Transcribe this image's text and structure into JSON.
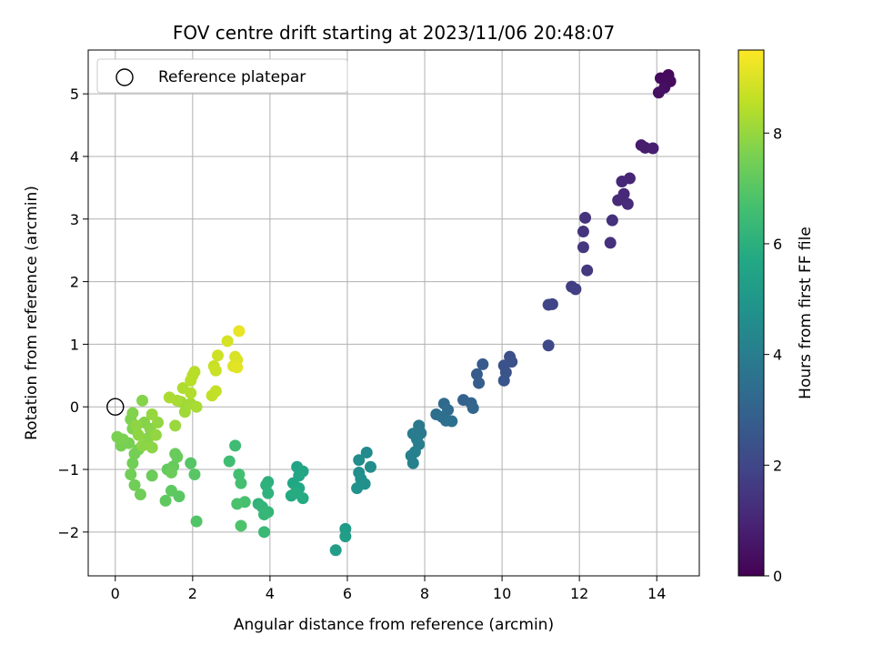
{
  "chart_data": {
    "type": "scatter",
    "title": "FOV centre drift starting at 2023/11/06 20:48:07",
    "xlabel": "Angular distance from reference (arcmin)",
    "ylabel": "Rotation from reference (arcmin)",
    "xlim": [
      -0.7,
      15.1
    ],
    "ylim": [
      -2.7,
      5.7
    ],
    "xticks": [
      "0",
      "2",
      "4",
      "6",
      "8",
      "10",
      "12",
      "14"
    ],
    "yticks": [
      "−2",
      "−1",
      "0",
      "1",
      "2",
      "3",
      "4",
      "5"
    ],
    "grid": true,
    "legend": {
      "placement": "top-left",
      "entries": [
        "Reference platepar"
      ]
    },
    "reference_point": {
      "x": 0,
      "y": 0
    },
    "colorbar": {
      "label": "Hours from first FF file",
      "colormap": "viridis",
      "range": [
        0,
        9.5
      ],
      "ticks": [
        "0",
        "2",
        "4",
        "6",
        "8"
      ]
    },
    "points": [
      {
        "x": 14.3,
        "y": 5.3,
        "h": 0.2
      },
      {
        "x": 14.1,
        "y": 5.25,
        "h": 0.25
      },
      {
        "x": 14.35,
        "y": 5.2,
        "h": 0.3
      },
      {
        "x": 14.2,
        "y": 5.1,
        "h": 0.35
      },
      {
        "x": 14.05,
        "y": 5.02,
        "h": 0.4
      },
      {
        "x": 13.6,
        "y": 4.18,
        "h": 0.7
      },
      {
        "x": 13.7,
        "y": 4.14,
        "h": 0.75
      },
      {
        "x": 13.9,
        "y": 4.13,
        "h": 0.8
      },
      {
        "x": 13.3,
        "y": 3.65,
        "h": 1.0
      },
      {
        "x": 13.1,
        "y": 3.6,
        "h": 1.05
      },
      {
        "x": 13.15,
        "y": 3.4,
        "h": 1.1
      },
      {
        "x": 13.0,
        "y": 3.3,
        "h": 1.15
      },
      {
        "x": 13.25,
        "y": 3.24,
        "h": 1.2
      },
      {
        "x": 12.85,
        "y": 2.98,
        "h": 1.3
      },
      {
        "x": 12.8,
        "y": 2.62,
        "h": 1.35
      },
      {
        "x": 12.15,
        "y": 3.02,
        "h": 1.4
      },
      {
        "x": 12.1,
        "y": 2.8,
        "h": 1.45
      },
      {
        "x": 12.1,
        "y": 2.55,
        "h": 1.5
      },
      {
        "x": 12.2,
        "y": 2.18,
        "h": 1.55
      },
      {
        "x": 11.8,
        "y": 1.92,
        "h": 1.7
      },
      {
        "x": 11.9,
        "y": 1.88,
        "h": 1.75
      },
      {
        "x": 11.2,
        "y": 1.63,
        "h": 1.9
      },
      {
        "x": 11.3,
        "y": 1.64,
        "h": 1.95
      },
      {
        "x": 11.2,
        "y": 0.98,
        "h": 2.05
      },
      {
        "x": 10.2,
        "y": 0.8,
        "h": 2.3
      },
      {
        "x": 10.25,
        "y": 0.72,
        "h": 2.35
      },
      {
        "x": 10.05,
        "y": 0.66,
        "h": 2.4
      },
      {
        "x": 10.1,
        "y": 0.55,
        "h": 2.45
      },
      {
        "x": 10.05,
        "y": 0.42,
        "h": 2.5
      },
      {
        "x": 9.5,
        "y": 0.68,
        "h": 2.7
      },
      {
        "x": 9.35,
        "y": 0.52,
        "h": 2.75
      },
      {
        "x": 9.4,
        "y": 0.38,
        "h": 2.8
      },
      {
        "x": 9.0,
        "y": 0.11,
        "h": 3.0
      },
      {
        "x": 9.2,
        "y": 0.06,
        "h": 3.05
      },
      {
        "x": 9.25,
        "y": -0.02,
        "h": 3.1
      },
      {
        "x": 8.5,
        "y": 0.05,
        "h": 3.3
      },
      {
        "x": 8.6,
        "y": -0.05,
        "h": 3.35
      },
      {
        "x": 8.3,
        "y": -0.12,
        "h": 3.4
      },
      {
        "x": 8.45,
        "y": -0.16,
        "h": 3.45
      },
      {
        "x": 8.55,
        "y": -0.22,
        "h": 3.5
      },
      {
        "x": 8.7,
        "y": -0.23,
        "h": 3.55
      },
      {
        "x": 7.85,
        "y": -0.3,
        "h": 3.8
      },
      {
        "x": 7.9,
        "y": -0.42,
        "h": 3.85
      },
      {
        "x": 7.7,
        "y": -0.43,
        "h": 3.9
      },
      {
        "x": 7.8,
        "y": -0.52,
        "h": 3.95
      },
      {
        "x": 7.85,
        "y": -0.6,
        "h": 4.0
      },
      {
        "x": 7.75,
        "y": -0.72,
        "h": 4.05
      },
      {
        "x": 7.65,
        "y": -0.78,
        "h": 4.1
      },
      {
        "x": 7.7,
        "y": -0.9,
        "h": 4.15
      },
      {
        "x": 6.5,
        "y": -0.73,
        "h": 4.5
      },
      {
        "x": 6.3,
        "y": -0.85,
        "h": 4.55
      },
      {
        "x": 6.6,
        "y": -0.96,
        "h": 4.6
      },
      {
        "x": 6.3,
        "y": -1.05,
        "h": 4.65
      },
      {
        "x": 6.35,
        "y": -1.15,
        "h": 4.7
      },
      {
        "x": 6.45,
        "y": -1.23,
        "h": 4.75
      },
      {
        "x": 6.25,
        "y": -1.3,
        "h": 4.8
      },
      {
        "x": 5.95,
        "y": -1.95,
        "h": 5.2
      },
      {
        "x": 5.95,
        "y": -2.07,
        "h": 5.25
      },
      {
        "x": 5.7,
        "y": -2.29,
        "h": 5.3
      },
      {
        "x": 4.7,
        "y": -0.96,
        "h": 5.5
      },
      {
        "x": 4.85,
        "y": -1.03,
        "h": 5.55
      },
      {
        "x": 4.75,
        "y": -1.1,
        "h": 5.6
      },
      {
        "x": 4.6,
        "y": -1.22,
        "h": 5.65
      },
      {
        "x": 4.75,
        "y": -1.3,
        "h": 5.7
      },
      {
        "x": 4.55,
        "y": -1.42,
        "h": 5.75
      },
      {
        "x": 4.85,
        "y": -1.46,
        "h": 5.8
      },
      {
        "x": 4.65,
        "y": -1.38,
        "h": 5.85
      },
      {
        "x": 3.95,
        "y": -1.2,
        "h": 6.0
      },
      {
        "x": 3.9,
        "y": -1.25,
        "h": 6.05
      },
      {
        "x": 3.95,
        "y": -1.38,
        "h": 6.1
      },
      {
        "x": 3.7,
        "y": -1.55,
        "h": 6.15
      },
      {
        "x": 3.8,
        "y": -1.6,
        "h": 6.2
      },
      {
        "x": 3.95,
        "y": -1.68,
        "h": 6.25
      },
      {
        "x": 3.85,
        "y": -1.72,
        "h": 6.3
      },
      {
        "x": 3.85,
        "y": -2.0,
        "h": 6.35
      },
      {
        "x": 3.1,
        "y": -0.62,
        "h": 6.5
      },
      {
        "x": 2.95,
        "y": -0.87,
        "h": 6.55
      },
      {
        "x": 3.2,
        "y": -1.08,
        "h": 6.6
      },
      {
        "x": 3.25,
        "y": -1.22,
        "h": 6.65
      },
      {
        "x": 3.35,
        "y": -1.52,
        "h": 6.7
      },
      {
        "x": 3.15,
        "y": -1.55,
        "h": 6.75
      },
      {
        "x": 3.25,
        "y": -1.9,
        "h": 6.8
      },
      {
        "x": 2.1,
        "y": -1.83,
        "h": 6.9
      },
      {
        "x": 1.95,
        "y": -0.9,
        "h": 6.95
      },
      {
        "x": 2.05,
        "y": -1.08,
        "h": 7.0
      },
      {
        "x": 1.65,
        "y": -1.43,
        "h": 7.05
      },
      {
        "x": 1.45,
        "y": -1.34,
        "h": 7.1
      },
      {
        "x": 1.3,
        "y": -1.5,
        "h": 7.15
      },
      {
        "x": 1.35,
        "y": -1.0,
        "h": 7.2
      },
      {
        "x": 1.5,
        "y": -0.95,
        "h": 7.25
      },
      {
        "x": 1.6,
        "y": -0.8,
        "h": 7.3
      },
      {
        "x": 1.55,
        "y": -0.75,
        "h": 7.3
      },
      {
        "x": 1.45,
        "y": -1.05,
        "h": 7.35
      },
      {
        "x": 0.95,
        "y": -1.1,
        "h": 7.35
      },
      {
        "x": 0.65,
        "y": -1.4,
        "h": 7.4
      },
      {
        "x": 0.5,
        "y": -1.25,
        "h": 7.4
      },
      {
        "x": 0.4,
        "y": -1.08,
        "h": 7.45
      },
      {
        "x": 0.45,
        "y": -0.9,
        "h": 7.45
      },
      {
        "x": 0.6,
        "y": -0.68,
        "h": 7.5
      },
      {
        "x": 0.5,
        "y": -0.75,
        "h": 7.5
      },
      {
        "x": 0.35,
        "y": -0.58,
        "h": 7.55
      },
      {
        "x": 0.15,
        "y": -0.62,
        "h": 7.55
      },
      {
        "x": 0.05,
        "y": -0.48,
        "h": 7.6
      },
      {
        "x": 0.2,
        "y": -0.52,
        "h": 7.6
      },
      {
        "x": 0.45,
        "y": -0.35,
        "h": 7.65
      },
      {
        "x": 0.4,
        "y": -0.2,
        "h": 7.65
      },
      {
        "x": 0.45,
        "y": -0.1,
        "h": 7.7
      },
      {
        "x": 0.7,
        "y": 0.1,
        "h": 7.75
      },
      {
        "x": 0.75,
        "y": -0.25,
        "h": 7.75
      },
      {
        "x": 0.9,
        "y": -0.35,
        "h": 7.8
      },
      {
        "x": 0.85,
        "y": -0.5,
        "h": 7.8
      },
      {
        "x": 0.95,
        "y": -0.65,
        "h": 7.85
      },
      {
        "x": 0.7,
        "y": -0.62,
        "h": 7.85
      },
      {
        "x": 0.6,
        "y": -0.45,
        "h": 7.9
      },
      {
        "x": 0.55,
        "y": -0.3,
        "h": 7.9
      },
      {
        "x": 1.05,
        "y": -0.45,
        "h": 7.95
      },
      {
        "x": 1.1,
        "y": -0.25,
        "h": 7.95
      },
      {
        "x": 0.95,
        "y": -0.12,
        "h": 8.0
      },
      {
        "x": 1.55,
        "y": -0.3,
        "h": 8.05
      },
      {
        "x": 1.7,
        "y": 0.08,
        "h": 8.1
      },
      {
        "x": 1.8,
        "y": -0.08,
        "h": 8.15
      },
      {
        "x": 1.95,
        "y": 0.05,
        "h": 8.2
      },
      {
        "x": 2.1,
        "y": 0.0,
        "h": 8.25
      },
      {
        "x": 1.6,
        "y": 0.1,
        "h": 8.25
      },
      {
        "x": 1.4,
        "y": 0.15,
        "h": 8.3
      },
      {
        "x": 1.75,
        "y": 0.3,
        "h": 8.35
      },
      {
        "x": 1.95,
        "y": 0.22,
        "h": 8.4
      },
      {
        "x": 1.95,
        "y": 0.42,
        "h": 8.45
      },
      {
        "x": 2.05,
        "y": 0.56,
        "h": 8.5
      },
      {
        "x": 2.0,
        "y": 0.5,
        "h": 8.5
      },
      {
        "x": 2.5,
        "y": 0.18,
        "h": 8.6
      },
      {
        "x": 2.6,
        "y": 0.25,
        "h": 8.65
      },
      {
        "x": 2.55,
        "y": 0.65,
        "h": 8.7
      },
      {
        "x": 2.6,
        "y": 0.58,
        "h": 8.75
      },
      {
        "x": 2.65,
        "y": 0.82,
        "h": 8.8
      },
      {
        "x": 2.9,
        "y": 1.05,
        "h": 8.9
      },
      {
        "x": 3.1,
        "y": 0.8,
        "h": 8.95
      },
      {
        "x": 3.15,
        "y": 0.75,
        "h": 9.0
      },
      {
        "x": 3.05,
        "y": 0.65,
        "h": 9.05
      },
      {
        "x": 3.15,
        "y": 0.63,
        "h": 9.1
      },
      {
        "x": 3.2,
        "y": 1.21,
        "h": 9.2
      }
    ]
  }
}
